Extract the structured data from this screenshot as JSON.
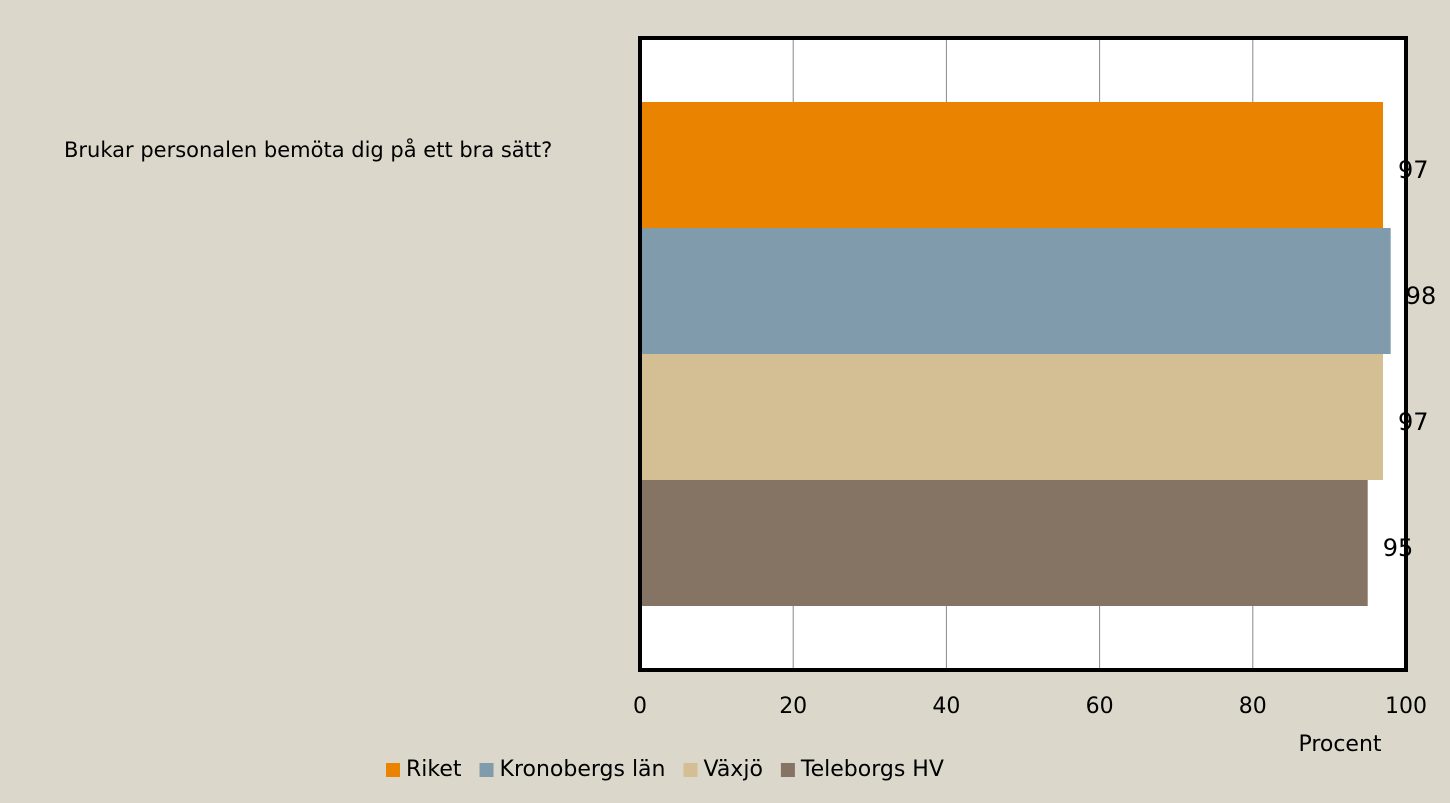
{
  "chart_data": {
    "type": "bar",
    "orientation": "horizontal",
    "categories": [
      "Brukar personalen bemöta dig på ett bra sätt?"
    ],
    "series": [
      {
        "name": "Riket",
        "color": "#e98300",
        "values": [
          97
        ]
      },
      {
        "name": "Kronobergs län",
        "color": "#7f9bac",
        "values": [
          98
        ]
      },
      {
        "name": "Växjö",
        "color": "#d4bf95",
        "values": [
          97
        ]
      },
      {
        "name": "Teleborgs HV",
        "color": "#857463",
        "values": [
          95
        ]
      }
    ],
    "xlabel": "Procent",
    "xlim": [
      0,
      100
    ],
    "xticks": [
      0,
      20,
      40,
      60,
      80,
      100
    ],
    "grid": true,
    "legend": "bottom"
  }
}
